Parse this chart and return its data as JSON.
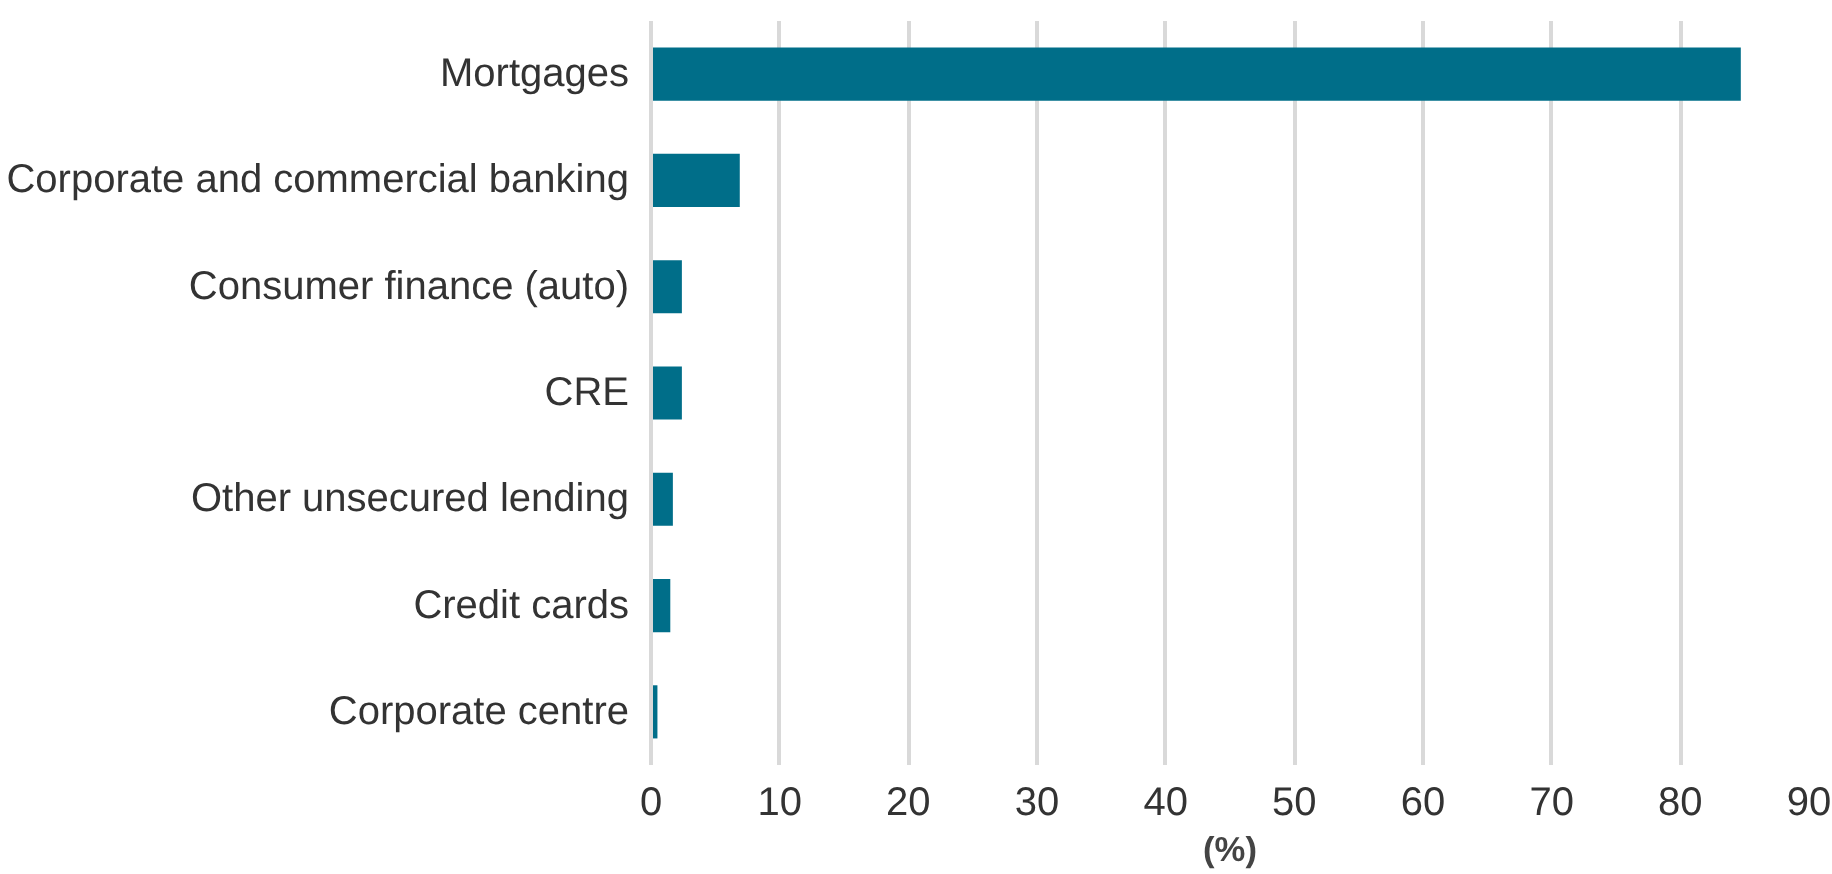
{
  "chart_data": {
    "type": "bar",
    "orientation": "horizontal",
    "xlabel": "(%)",
    "categories": [
      "Mortgages",
      "Corporate and commercial banking",
      "Consumer finance (auto)",
      "CRE",
      "Other unsecured lending",
      "Credit cards",
      "Corporate centre"
    ],
    "values": [
      84.7,
      6.9,
      2.4,
      2.4,
      1.7,
      1.5,
      0.5
    ],
    "color": "#006e89",
    "xlim": [
      0,
      90
    ],
    "xticks": [
      0,
      10,
      20,
      30,
      40,
      50,
      60,
      70,
      80,
      90
    ],
    "grid": "x"
  }
}
